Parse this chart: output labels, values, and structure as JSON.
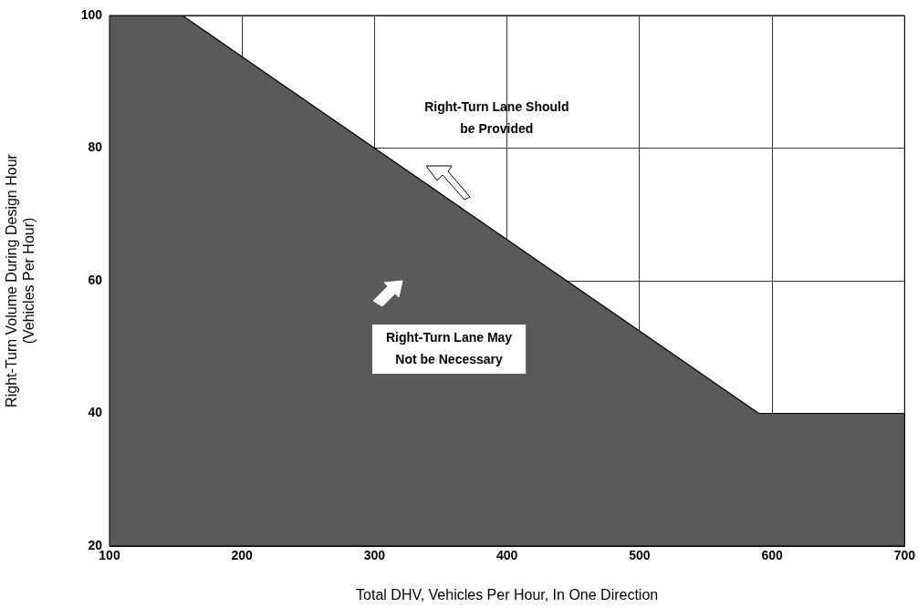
{
  "chart_data": {
    "type": "area",
    "xlabel": "Total DHV, Vehicles Per Hour, In One Direction",
    "ylabel": "Right-Turn Volume During Design Hour\n(Vehicles Per Hour)",
    "series": [
      {
        "color": "#5a5a5a",
        "x": [
          100,
          155,
          300,
          590,
          700
        ],
        "values": [
          100,
          100,
          80,
          40,
          40
        ]
      }
    ],
    "xlim": [
      100,
      700
    ],
    "xticks": [
      100,
      200,
      300,
      400,
      500,
      600,
      700
    ],
    "ylim": [
      20,
      100
    ],
    "yticks": [
      20,
      40,
      60,
      80,
      100
    ],
    "grid": true,
    "marker": "none",
    "line_style": "solid",
    "annotations": [
      "Right-Turn Lane Should\nbe Provided",
      "Right-Turn Lane May\nNot be Necessary"
    ]
  }
}
